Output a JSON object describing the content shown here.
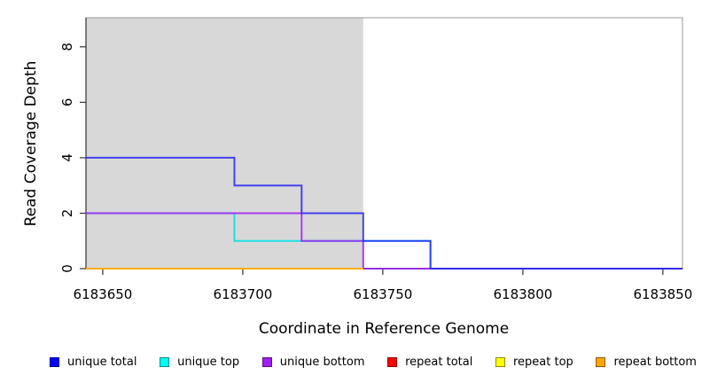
{
  "chart_data": {
    "type": "line",
    "subtype": "step-post",
    "title": "",
    "xlabel": "Coordinate in Reference Genome",
    "ylabel": "Read Coverage Depth",
    "xlim": [
      6183644,
      6183857
    ],
    "ylim": [
      0,
      9.05
    ],
    "x_ticks": [
      6183650,
      6183700,
      6183750,
      6183800,
      6183850
    ],
    "y_ticks": [
      0,
      2,
      4,
      6,
      8
    ],
    "grid": false,
    "legend_position": "bottom",
    "repeat_region": {
      "x0": 6183644,
      "x1": 6183743,
      "color": "#d8d8d8"
    },
    "series": [
      {
        "name": "unique total",
        "color": "#2828f0",
        "steps": [
          [
            6183644,
            4
          ],
          [
            6183697,
            3
          ],
          [
            6183721,
            2
          ],
          [
            6183743,
            1
          ],
          [
            6183767,
            0
          ]
        ],
        "x_end": 6183857,
        "draw_order": 3
      },
      {
        "name": "unique top",
        "color": "#00e0ea",
        "steps": [
          [
            6183644,
            2
          ],
          [
            6183697,
            1
          ],
          [
            6183767,
            0
          ]
        ],
        "x_end": 6183857,
        "draw_order": 1
      },
      {
        "name": "unique bottom",
        "color": "#a020f0",
        "steps": [
          [
            6183644,
            2
          ],
          [
            6183721,
            1
          ],
          [
            6183743,
            0
          ]
        ],
        "x_end": 6183857,
        "draw_order": 2
      },
      {
        "name": "repeat total",
        "color": "#ff0000",
        "steps": [
          [
            6183644,
            0
          ]
        ],
        "x_end": 6183743,
        "draw_order": 4
      },
      {
        "name": "repeat top",
        "color": "#ffff00",
        "steps": [
          [
            6183644,
            0
          ]
        ],
        "x_end": 6183743,
        "draw_order": 5
      },
      {
        "name": "repeat bottom",
        "color": "#ffa500",
        "steps": [
          [
            6183644,
            0
          ]
        ],
        "x_end": 6183743,
        "draw_order": 6
      }
    ],
    "legend": [
      {
        "label": "unique total",
        "color": "#0000ff"
      },
      {
        "label": "unique top",
        "color": "#00ffff"
      },
      {
        "label": "unique bottom",
        "color": "#a020f0"
      },
      {
        "label": "repeat total",
        "color": "#ff0000"
      },
      {
        "label": "repeat top",
        "color": "#ffff00"
      },
      {
        "label": "repeat bottom",
        "color": "#ffa500"
      }
    ]
  }
}
